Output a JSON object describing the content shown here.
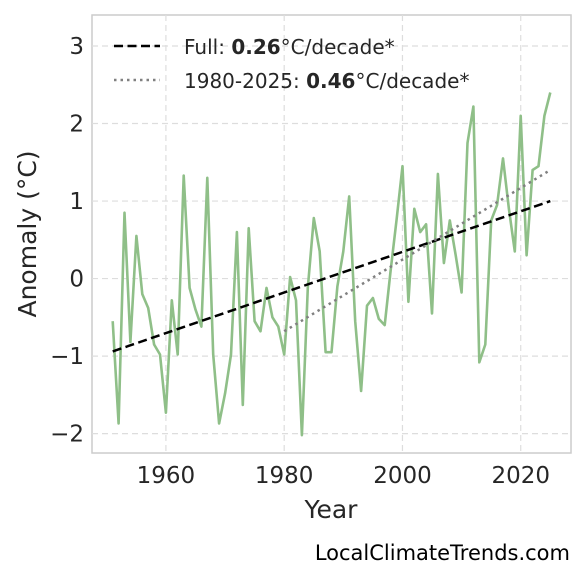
{
  "chart_data": {
    "type": "line",
    "xlabel": "Year",
    "ylabel": "Anomaly (°C)",
    "xlim": [
      1947.5,
      2028.5
    ],
    "ylim": [
      -2.25,
      3.4
    ],
    "xticks": [
      1960,
      1980,
      2000,
      2020
    ],
    "yticks": [
      -2,
      -1,
      0,
      1,
      2,
      3
    ],
    "ytick_labels": [
      "−2",
      "−1",
      "0",
      "1",
      "2",
      "3"
    ],
    "grid": true,
    "legend_position": "top-left",
    "series": [
      {
        "style": "solid",
        "color": "#8fbf88",
        "x": [
          1951,
          1952,
          1953,
          1954,
          1955,
          1956,
          1957,
          1958,
          1959,
          1960,
          1961,
          1962,
          1963,
          1964,
          1965,
          1966,
          1967,
          1968,
          1969,
          1970,
          1971,
          1972,
          1973,
          1974,
          1975,
          1976,
          1977,
          1978,
          1979,
          1980,
          1981,
          1982,
          1983,
          1984,
          1985,
          1986,
          1987,
          1988,
          1989,
          1990,
          1991,
          1992,
          1993,
          1994,
          1995,
          1996,
          1997,
          1998,
          1999,
          2000,
          2001,
          2002,
          2003,
          2004,
          2005,
          2006,
          2007,
          2008,
          2009,
          2010,
          2011,
          2012,
          2013,
          2014,
          2015,
          2016,
          2017,
          2018,
          2019,
          2020,
          2021,
          2022,
          2023,
          2024,
          2025
        ],
        "y": [
          -0.55,
          -1.87,
          0.85,
          -0.82,
          0.55,
          -0.2,
          -0.38,
          -0.85,
          -0.98,
          -1.73,
          -0.28,
          -0.98,
          1.33,
          -0.12,
          -0.4,
          -0.62,
          1.3,
          -0.98,
          -1.87,
          -1.48,
          -0.98,
          0.6,
          -1.63,
          0.65,
          -0.55,
          -0.68,
          -0.12,
          -0.5,
          -0.62,
          -0.98,
          0.02,
          -0.28,
          -2.02,
          -0.12,
          0.78,
          0.35,
          -0.95,
          -0.95,
          -0.1,
          0.35,
          1.06,
          -0.55,
          -1.45,
          -0.35,
          -0.25,
          -0.52,
          -0.6,
          0.1,
          0.75,
          1.45,
          -0.3,
          0.9,
          0.6,
          0.7,
          -0.45,
          1.35,
          0.2,
          0.75,
          0.3,
          -0.18,
          1.75,
          2.22,
          -1.08,
          -0.85,
          0.75,
          0.95,
          1.55,
          0.9,
          0.35,
          2.1,
          0.3,
          1.4,
          1.45,
          2.1,
          2.4
        ]
      },
      {
        "name": "Full",
        "style": "dashed",
        "color": "#000000",
        "rate": "0.26",
        "unit": "°C/decade*",
        "x": [
          1951,
          2025
        ],
        "y": [
          -0.94,
          1.0
        ]
      },
      {
        "name": "1980-2025",
        "style": "dotted",
        "color": "#808080",
        "rate": "0.46",
        "unit": "°C/decade*",
        "x": [
          1980,
          2025
        ],
        "y": [
          -0.68,
          1.4
        ]
      }
    ]
  },
  "credit": "LocalClimateTrends.com"
}
